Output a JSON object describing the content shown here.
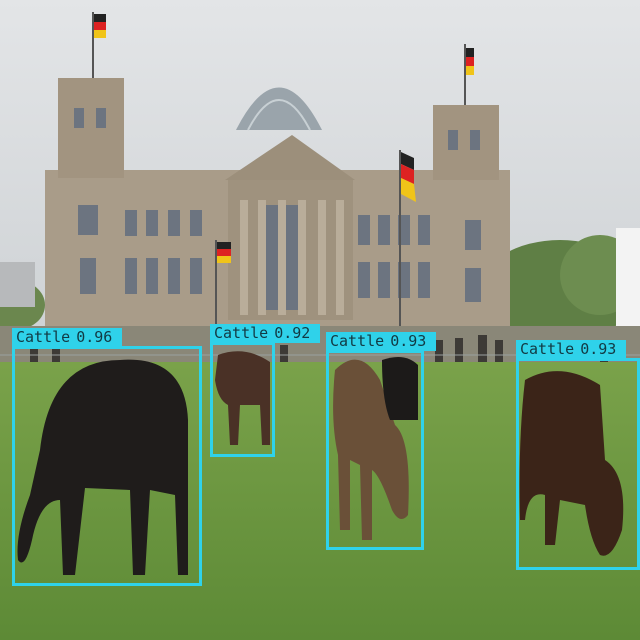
{
  "image": {
    "subject": "cattle grazing on lawn in front of Reichstag building",
    "colors": {
      "box": "#2fd2ea",
      "label_text": "#123a44",
      "sky": "#d9dcdf",
      "grass": "#6d9a3f",
      "stone": "#a89a86"
    }
  },
  "detections": [
    {
      "label": "Cattle",
      "score": "0.96"
    },
    {
      "label": "Cattle",
      "score": "0.92"
    },
    {
      "label": "Cattle",
      "score": "0.93"
    },
    {
      "label": "Cattle",
      "score": "0.93"
    }
  ]
}
